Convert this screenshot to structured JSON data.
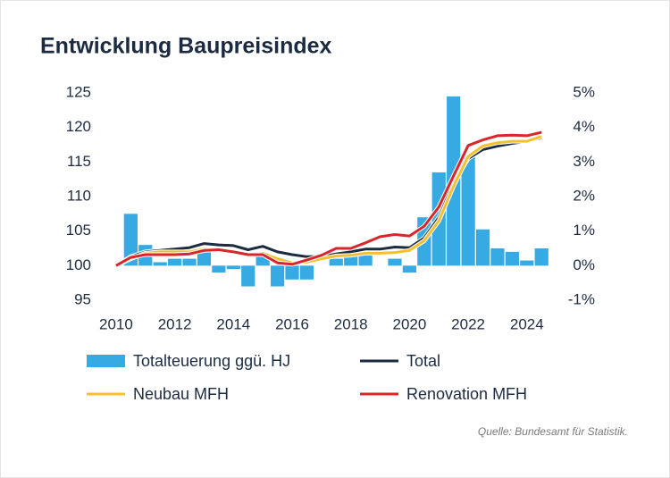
{
  "chart_data": {
    "type": "bar-line",
    "title": "Entwicklung Baupreisindex",
    "source": "Quelle: Bundesamt für Statistik.",
    "x": [
      2010,
      2010.5,
      2011,
      2011.5,
      2012,
      2012.5,
      2013,
      2013.5,
      2014,
      2014.5,
      2015,
      2015.5,
      2016,
      2016.5,
      2017,
      2017.5,
      2018,
      2018.5,
      2019,
      2019.5,
      2020,
      2020.5,
      2021,
      2021.5,
      2022,
      2022.5,
      2023,
      2023.5,
      2024,
      2024.5
    ],
    "xlim": [
      2009.85,
      2024.95
    ],
    "xticks": [
      2010,
      2012,
      2014,
      2016,
      2018,
      2020,
      2022,
      2024
    ],
    "ylim": [
      95,
      125
    ],
    "yticks": [
      95,
      100,
      105,
      110,
      115,
      120,
      125
    ],
    "y2lim": [
      -1,
      5
    ],
    "y2ticks": [
      {
        "value": -1,
        "label": "-1%"
      },
      {
        "value": 0,
        "label": "0%"
      },
      {
        "value": 1,
        "label": "1%"
      },
      {
        "value": 2,
        "label": "2%"
      },
      {
        "value": 3,
        "label": "3%"
      },
      {
        "value": 4,
        "label": "4%"
      },
      {
        "value": 5,
        "label": "5%"
      }
    ],
    "series": [
      {
        "name": "Totalteuerung ggü. HJ",
        "type": "bar",
        "axis": "y2",
        "color": "#36aae2",
        "values": [
          null,
          1.5,
          0.6,
          0.1,
          0.2,
          0.2,
          0.4,
          -0.2,
          -0.1,
          -0.6,
          0.3,
          -0.6,
          -0.4,
          -0.4,
          0.0,
          0.2,
          0.3,
          0.4,
          0.0,
          0.2,
          -0.2,
          1.4,
          2.7,
          4.9,
          3.2,
          1.05,
          0.5,
          0.4,
          0.15,
          0.5
        ]
      },
      {
        "name": "Total",
        "type": "line",
        "color": "#1c2b40",
        "values": [
          100,
          101.3,
          102,
          102.2,
          102.4,
          102.6,
          103.2,
          103,
          102.9,
          102.3,
          102.8,
          102,
          101.6,
          101.3,
          101.3,
          101.7,
          102,
          102.4,
          102.4,
          102.7,
          102.6,
          104,
          107,
          112,
          115.5,
          116.8,
          117.3,
          117.7,
          118,
          118.5
        ]
      },
      {
        "name": "Neubau MFH",
        "type": "line",
        "color": "#f4c030",
        "values": [
          100,
          101,
          101.8,
          102,
          102,
          102,
          102.4,
          102.3,
          102,
          101.5,
          101.8,
          101,
          100.4,
          100.5,
          101,
          101.4,
          101.5,
          101.8,
          101.8,
          101.9,
          102.2,
          103.6,
          106.5,
          111.5,
          115.8,
          117.3,
          117.8,
          118,
          118,
          118.7
        ]
      },
      {
        "name": "Renovation MFH",
        "type": "line",
        "color": "#d8262b",
        "values": [
          100,
          101.2,
          101.6,
          101.6,
          101.6,
          101.7,
          102.2,
          102.3,
          102,
          101.6,
          101.6,
          100.4,
          100.2,
          100.8,
          101.5,
          102.5,
          102.5,
          103.3,
          104.2,
          104.5,
          104.3,
          105.7,
          108.5,
          113,
          117.4,
          118.2,
          118.8,
          118.9,
          118.8,
          119.3
        ]
      }
    ]
  }
}
